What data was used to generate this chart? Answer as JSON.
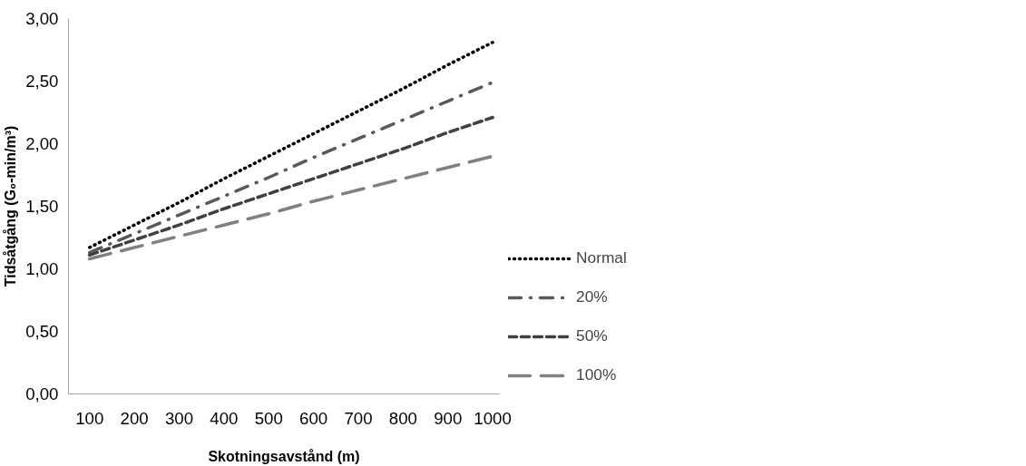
{
  "chart_data": {
    "type": "line",
    "xlabel": "Skotningsavstånd (m)",
    "ylabel": "Tidsåtgång (G₀-min/m³)",
    "categories": [
      "100",
      "200",
      "300",
      "400",
      "500",
      "600",
      "700",
      "800",
      "900",
      "1000"
    ],
    "series": [
      {
        "name": "Normal",
        "color": "#000000",
        "line_style": "dotted",
        "values": [
          1.17,
          1.35,
          1.53,
          1.72,
          1.9,
          2.08,
          2.26,
          2.44,
          2.63,
          2.81
        ]
      },
      {
        "name": "20%",
        "color": "#595959",
        "line_style": "dashdot",
        "values": [
          1.13,
          1.28,
          1.43,
          1.58,
          1.73,
          1.89,
          2.04,
          2.19,
          2.34,
          2.49
        ]
      },
      {
        "name": "50%",
        "color": "#404040",
        "line_style": "dashed",
        "values": [
          1.11,
          1.23,
          1.35,
          1.48,
          1.6,
          1.72,
          1.84,
          1.96,
          2.09,
          2.21
        ]
      },
      {
        "name": "100%",
        "color": "#808080",
        "line_style": "longdash",
        "values": [
          1.08,
          1.17,
          1.26,
          1.35,
          1.44,
          1.54,
          1.63,
          1.72,
          1.81,
          1.9
        ]
      }
    ],
    "ylim": [
      0,
      3
    ],
    "yticks": [
      {
        "value": 0,
        "label": "0,00"
      },
      {
        "value": 0.5,
        "label": "0,50"
      },
      {
        "value": 1,
        "label": "1,00"
      },
      {
        "value": 1.5,
        "label": "1,50"
      },
      {
        "value": 2,
        "label": "2,00"
      },
      {
        "value": 2.5,
        "label": "2,50"
      },
      {
        "value": 3,
        "label": "3,00"
      }
    ],
    "grid": false,
    "legend": "right",
    "marker": "none"
  }
}
